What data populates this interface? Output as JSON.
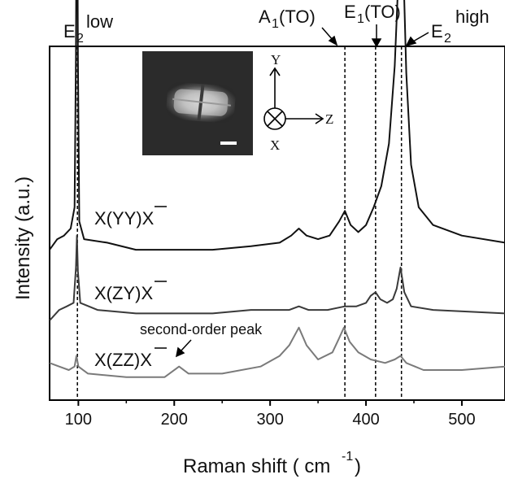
{
  "chart_data": {
    "type": "line",
    "title": "",
    "xlabel": "Raman shift ( cm",
    "xlabel_sup": "-1",
    "xlabel_end": ")",
    "ylabel": "Intensity (a.u.)",
    "xlim": [
      70,
      545
    ],
    "ylim": [
      0,
      1
    ],
    "x_ticks": [
      100,
      200,
      300,
      400,
      500
    ],
    "x_tick_labels": [
      "100",
      "200",
      "300",
      "400",
      "500"
    ],
    "grid": false,
    "y_tick_labels": false,
    "series": [
      {
        "name": "X(YY)X",
        "color": "#111111",
        "offset": 0.425,
        "points": [
          [
            70,
            0.0
          ],
          [
            78,
            0.03
          ],
          [
            85,
            0.04
          ],
          [
            92,
            0.06
          ],
          [
            96,
            0.12
          ],
          [
            97.5,
            0.55
          ],
          [
            98.5,
            1.32
          ],
          [
            99.5,
            0.55
          ],
          [
            101,
            0.08
          ],
          [
            106,
            0.03
          ],
          [
            130,
            0.02
          ],
          [
            160,
            0.0
          ],
          [
            200,
            0.0
          ],
          [
            240,
            0.0
          ],
          [
            280,
            0.01
          ],
          [
            310,
            0.02
          ],
          [
            322,
            0.04
          ],
          [
            330,
            0.06
          ],
          [
            338,
            0.04
          ],
          [
            350,
            0.03
          ],
          [
            362,
            0.04
          ],
          [
            372,
            0.08
          ],
          [
            378,
            0.11
          ],
          [
            384,
            0.07
          ],
          [
            392,
            0.05
          ],
          [
            400,
            0.07
          ],
          [
            408,
            0.12
          ],
          [
            416,
            0.18
          ],
          [
            424,
            0.3
          ],
          [
            430,
            0.52
          ],
          [
            434,
            0.78
          ],
          [
            436.5,
            0.94
          ],
          [
            439,
            0.8
          ],
          [
            442,
            0.5
          ],
          [
            447,
            0.24
          ],
          [
            455,
            0.12
          ],
          [
            470,
            0.07
          ],
          [
            500,
            0.04
          ],
          [
            545,
            0.02
          ]
        ]
      },
      {
        "name": "X(ZY)X",
        "color": "#3a3a3a",
        "offset": 0.225,
        "points": [
          [
            70,
            0.0
          ],
          [
            80,
            0.03
          ],
          [
            88,
            0.04
          ],
          [
            95,
            0.05
          ],
          [
            97.5,
            0.15
          ],
          [
            98.5,
            0.24
          ],
          [
            99.5,
            0.14
          ],
          [
            102,
            0.05
          ],
          [
            120,
            0.03
          ],
          [
            160,
            0.02
          ],
          [
            200,
            0.02
          ],
          [
            240,
            0.02
          ],
          [
            280,
            0.03
          ],
          [
            320,
            0.03
          ],
          [
            330,
            0.04
          ],
          [
            340,
            0.03
          ],
          [
            360,
            0.03
          ],
          [
            378,
            0.04
          ],
          [
            390,
            0.04
          ],
          [
            400,
            0.05
          ],
          [
            405,
            0.07
          ],
          [
            410,
            0.08
          ],
          [
            415,
            0.06
          ],
          [
            422,
            0.05
          ],
          [
            428,
            0.06
          ],
          [
            432,
            0.09
          ],
          [
            436,
            0.15
          ],
          [
            440,
            0.08
          ],
          [
            447,
            0.04
          ],
          [
            470,
            0.03
          ],
          [
            545,
            0.02
          ]
        ]
      },
      {
        "name": "X(ZZ)X",
        "color": "#7a7a7a",
        "offset": 0.105,
        "points": [
          [
            70,
            0.0
          ],
          [
            80,
            -0.01
          ],
          [
            90,
            -0.02
          ],
          [
            96,
            -0.01
          ],
          [
            98,
            0.02
          ],
          [
            100,
            -0.01
          ],
          [
            110,
            -0.03
          ],
          [
            150,
            -0.04
          ],
          [
            190,
            -0.04
          ],
          [
            205,
            -0.01
          ],
          [
            215,
            -0.03
          ],
          [
            250,
            -0.03
          ],
          [
            290,
            -0.01
          ],
          [
            310,
            0.02
          ],
          [
            320,
            0.05
          ],
          [
            330,
            0.1
          ],
          [
            338,
            0.05
          ],
          [
            350,
            0.01
          ],
          [
            365,
            0.03
          ],
          [
            372,
            0.07
          ],
          [
            377,
            0.1
          ],
          [
            383,
            0.06
          ],
          [
            392,
            0.03
          ],
          [
            405,
            0.01
          ],
          [
            420,
            0.0
          ],
          [
            430,
            0.01
          ],
          [
            436,
            0.02
          ],
          [
            442,
            0.0
          ],
          [
            460,
            -0.02
          ],
          [
            500,
            -0.02
          ],
          [
            545,
            -0.01
          ]
        ]
      }
    ],
    "series_labels": [
      {
        "text": "X(YY)X"
      },
      {
        "text": "X(ZY)X"
      },
      {
        "text": "X(ZZ)X"
      }
    ],
    "peak_markers": [
      {
        "label": "E",
        "sub": "2",
        "sup": "low",
        "x": 99
      },
      {
        "label": "A",
        "sub": "1",
        "tail": "(TO)",
        "x": 378
      },
      {
        "label": "E",
        "sub": "1",
        "tail": "(TO)",
        "x": 410
      },
      {
        "label": "E",
        "sub": "2",
        "sup": "high",
        "x": 437
      }
    ],
    "annotations": [
      {
        "text": "second-order peak",
        "points_to_x": 203
      }
    ],
    "inset": {
      "description": "optical image of nanostructure",
      "axes": {
        "y": "Y",
        "z": "Z",
        "x": "X"
      }
    }
  }
}
